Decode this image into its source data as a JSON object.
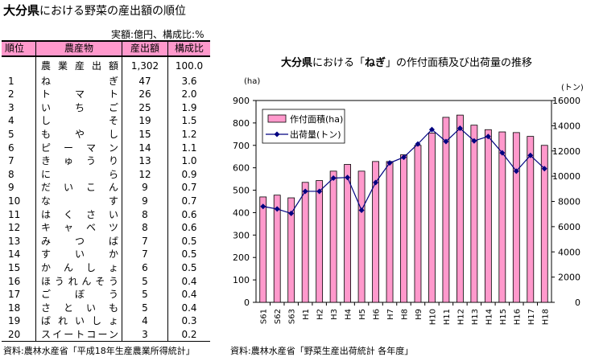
{
  "left": {
    "title_bold": "大分県",
    "title_rest": "における野菜の産出額の順位",
    "unit_note": "実額:億円、構成比:%",
    "headers": {
      "rank": "順位",
      "name": "農産物",
      "value": "産出額",
      "ratio": "構成比"
    },
    "total": {
      "name": "農業産出額",
      "value": "1,302",
      "ratio": "100.0"
    },
    "rows": [
      {
        "rank": "1",
        "name": "ねぎ",
        "value": "47",
        "ratio": "3.6"
      },
      {
        "rank": "2",
        "name": "トマト",
        "value": "26",
        "ratio": "2.0"
      },
      {
        "rank": "3",
        "name": "いちご",
        "value": "25",
        "ratio": "1.9"
      },
      {
        "rank": "4",
        "name": "しそ",
        "value": "19",
        "ratio": "1.5"
      },
      {
        "rank": "5",
        "name": "もやし",
        "value": "15",
        "ratio": "1.2"
      },
      {
        "rank": "6",
        "name": "ピーマン",
        "value": "14",
        "ratio": "1.1"
      },
      {
        "rank": "7",
        "name": "きゅうり",
        "value": "13",
        "ratio": "1.0"
      },
      {
        "rank": "8",
        "name": "にら",
        "value": "12",
        "ratio": "0.9"
      },
      {
        "rank": "9",
        "name": "だいこん",
        "value": "9",
        "ratio": "0.7"
      },
      {
        "rank": "10",
        "name": "なす",
        "value": "9",
        "ratio": "0.7"
      },
      {
        "rank": "11",
        "name": "はくさい",
        "value": "8",
        "ratio": "0.6"
      },
      {
        "rank": "12",
        "name": "キャベツ",
        "value": "8",
        "ratio": "0.6"
      },
      {
        "rank": "13",
        "name": "みつば",
        "value": "7",
        "ratio": "0.5"
      },
      {
        "rank": "14",
        "name": "すいか",
        "value": "7",
        "ratio": "0.5"
      },
      {
        "rank": "15",
        "name": "かんしょ",
        "value": "6",
        "ratio": "0.5"
      },
      {
        "rank": "16",
        "name": "ほうれんそう",
        "value": "5",
        "ratio": "0.4"
      },
      {
        "rank": "17",
        "name": "ごぼう",
        "value": "5",
        "ratio": "0.4"
      },
      {
        "rank": "18",
        "name": "さといも",
        "value": "5",
        "ratio": "0.4"
      },
      {
        "rank": "19",
        "name": "ばれいしょ",
        "value": "4",
        "ratio": "0.3"
      },
      {
        "rank": "20",
        "name": "スイートコーン",
        "value": "3",
        "ratio": "0.2"
      }
    ],
    "source": "資料:農林水産省「平成18年生産農業所得統計」"
  },
  "chart_data": {
    "type": "bar",
    "title_bold": "大分県",
    "title_rest": "における「",
    "title_item": "ねぎ",
    "title_end": "」の作付面積及び出荷量の推移",
    "categories": [
      "S61",
      "S62",
      "S63",
      "H1",
      "H2",
      "H3",
      "H4",
      "H5",
      "H6",
      "H7",
      "H8",
      "H9",
      "H10",
      "H11",
      "H12",
      "H13",
      "H14",
      "H15",
      "H16",
      "H17",
      "H18"
    ],
    "series": [
      {
        "name": "作付面積(ha)",
        "type": "bar",
        "axis": "left",
        "values": [
          470,
          478,
          466,
          535,
          543,
          585,
          615,
          585,
          628,
          628,
          658,
          700,
          755,
          825,
          835,
          790,
          770,
          760,
          757,
          740,
          700
        ]
      },
      {
        "name": "出荷量(トン)",
        "type": "line",
        "axis": "right",
        "values": [
          7600,
          7400,
          7050,
          8800,
          8800,
          9850,
          9900,
          7300,
          9500,
          11050,
          11500,
          12550,
          13700,
          12750,
          13800,
          12800,
          13150,
          11850,
          10400,
          11650,
          10600
        ]
      }
    ],
    "y_left": {
      "label": "(ha)",
      "min": 0,
      "max": 900,
      "ticks": [
        0,
        100,
        200,
        300,
        400,
        500,
        600,
        700,
        800,
        900
      ]
    },
    "y_right": {
      "label": "(トン)",
      "min": 0,
      "max": 16000,
      "ticks": [
        0,
        2000,
        4000,
        6000,
        8000,
        10000,
        12000,
        14000,
        16000
      ]
    },
    "legend_position": "top-left",
    "grid": false,
    "colors": {
      "bar_fill": "#ff99cc",
      "bar_stroke": "#000000",
      "line": "#000080"
    },
    "source": "資料:農林水産省「野菜生産出荷統計 各年度」"
  }
}
